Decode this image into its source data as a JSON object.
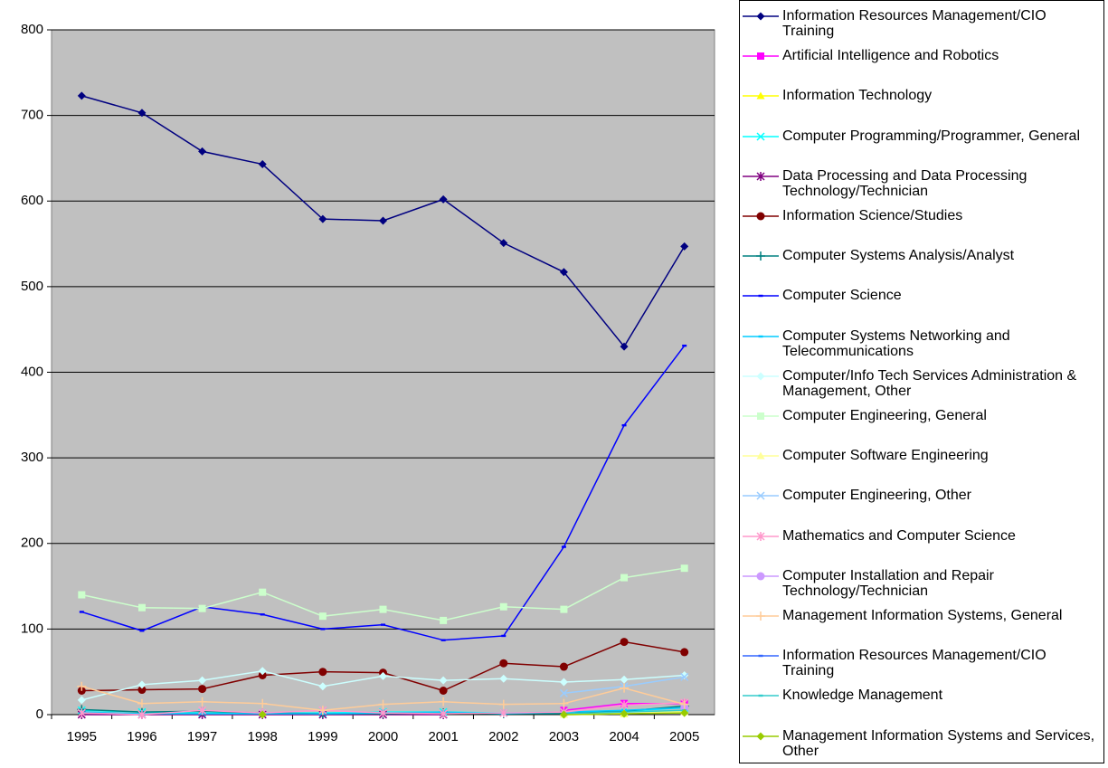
{
  "chart_data": {
    "type": "line",
    "categories": [
      "1995",
      "1996",
      "1997",
      "1998",
      "1999",
      "2000",
      "2001",
      "2002",
      "2003",
      "2004",
      "2005"
    ],
    "ylim": [
      0,
      800
    ],
    "yticks": [
      0,
      100,
      200,
      300,
      400,
      500,
      600,
      700,
      800
    ],
    "grid": true,
    "plot_background": "#c0c0c0",
    "legend": "right",
    "series": [
      {
        "name": "Information Resources Management/CIO Training",
        "color": "#000080",
        "marker": "diamond",
        "values": [
          723,
          703,
          658,
          643,
          579,
          577,
          602,
          551,
          517,
          430,
          547
        ]
      },
      {
        "name": "Artificial Intelligence and Robotics",
        "color": "#ff00ff",
        "marker": "square",
        "values": [
          null,
          null,
          null,
          null,
          null,
          null,
          null,
          null,
          5,
          13,
          13
        ]
      },
      {
        "name": "Information Technology",
        "color": "#ffff00",
        "marker": "triangle",
        "values": [
          null,
          null,
          null,
          null,
          null,
          null,
          null,
          null,
          0,
          1,
          5
        ]
      },
      {
        "name": "Computer Programming/Programmer, General",
        "color": "#00ffff",
        "marker": "x",
        "values": [
          5,
          3,
          2,
          2,
          2,
          3,
          3,
          2,
          3,
          4,
          8
        ]
      },
      {
        "name": "Data Processing and Data Processing Technology/Technician",
        "color": "#800080",
        "marker": "star",
        "values": [
          0,
          0,
          0,
          0,
          0,
          0,
          0,
          null,
          null,
          null,
          null
        ]
      },
      {
        "name": "Information Science/Studies",
        "color": "#800000",
        "marker": "circle",
        "values": [
          28,
          29,
          30,
          46,
          50,
          49,
          28,
          60,
          56,
          85,
          73
        ]
      },
      {
        "name": "Computer Systems Analysis/Analyst",
        "color": "#008080",
        "marker": "plus",
        "values": [
          6,
          3,
          4,
          2,
          1,
          1,
          2,
          1,
          1,
          4,
          10
        ]
      },
      {
        "name": "Computer Science",
        "color": "#0000ff",
        "marker": "dash",
        "values": [
          120,
          98,
          126,
          117,
          100,
          105,
          87,
          92,
          196,
          338,
          431
        ]
      },
      {
        "name": "Computer Systems Networking and Telecommunications",
        "color": "#00ccff",
        "marker": "dash",
        "values": [
          3,
          1,
          1,
          1,
          1,
          2,
          3,
          1,
          3,
          5,
          8
        ]
      },
      {
        "name": "Computer/Info Tech Services Administration & Management, Other",
        "color": "#ccffff",
        "marker": "diamond",
        "values": [
          17,
          35,
          40,
          51,
          33,
          45,
          40,
          42,
          38,
          41,
          46
        ]
      },
      {
        "name": "Computer Engineering, General",
        "color": "#ccffcc",
        "marker": "square",
        "values": [
          140,
          125,
          124,
          143,
          115,
          123,
          110,
          126,
          123,
          160,
          171
        ]
      },
      {
        "name": "Computer Software Engineering",
        "color": "#ffff99",
        "marker": "triangle",
        "values": [
          null,
          null,
          null,
          null,
          null,
          null,
          null,
          null,
          0,
          2,
          3
        ]
      },
      {
        "name": "Computer Engineering, Other",
        "color": "#99ccff",
        "marker": "x",
        "values": [
          null,
          null,
          null,
          null,
          null,
          null,
          null,
          null,
          25,
          33,
          44
        ]
      },
      {
        "name": "Mathematics and Computer Science",
        "color": "#ff99cc",
        "marker": "star",
        "values": [
          2,
          0,
          5,
          2,
          5,
          2,
          1,
          2,
          3,
          11,
          14
        ]
      },
      {
        "name": "Computer Installation and Repair Technology/Technician",
        "color": "#cc99ff",
        "marker": "circle",
        "values": [
          null,
          null,
          null,
          null,
          null,
          null,
          null,
          null,
          null,
          null,
          8
        ]
      },
      {
        "name": "Management Information Systems, General",
        "color": "#ffcc99",
        "marker": "plus",
        "values": [
          33,
          13,
          15,
          13,
          5,
          12,
          15,
          12,
          13,
          31,
          12
        ]
      },
      {
        "name": "Information Resources Management/CIO Training",
        "color": "#3366ff",
        "marker": "dash",
        "values": [
          null,
          null,
          null,
          null,
          null,
          null,
          null,
          null,
          null,
          null,
          null
        ]
      },
      {
        "name": "Knowledge Management",
        "color": "#33cccc",
        "marker": "dash",
        "values": [
          null,
          null,
          null,
          null,
          null,
          null,
          null,
          null,
          1,
          3,
          5
        ]
      },
      {
        "name": "Management Information Systems and Services, Other",
        "color": "#99cc00",
        "marker": "diamond",
        "values": [
          null,
          null,
          null,
          0,
          null,
          null,
          null,
          null,
          0,
          1,
          2
        ]
      }
    ]
  }
}
